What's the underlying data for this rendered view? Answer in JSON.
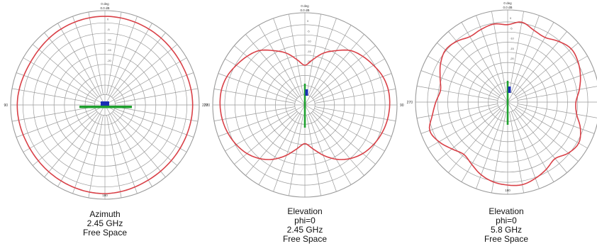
{
  "chart_data": [
    {
      "type": "polar",
      "grid": true,
      "angle_ticks_deg": 10,
      "side_labels": [
        "90",
        "270"
      ],
      "bottom_label": "180",
      "top_label": [
        "0 deg",
        "0.0  dB"
      ],
      "radial_ring_labels": [
        "0",
        "-5",
        "-10",
        "-15",
        "-20"
      ],
      "caption": [
        "Azimuth",
        "2.45 GHz",
        "Free Space"
      ],
      "series": [
        {
          "angles_deg": [
            0,
            30,
            60,
            90,
            120,
            150,
            180,
            210,
            240,
            270,
            300,
            330
          ],
          "radius_norm": [
            0.94,
            0.93,
            0.92,
            0.93,
            0.92,
            0.92,
            0.94,
            0.93,
            0.92,
            0.93,
            0.91,
            0.93
          ]
        }
      ],
      "antenna": {
        "orientation": "horizontal"
      }
    },
    {
      "type": "polar",
      "grid": true,
      "angle_ticks_deg": 10,
      "side_labels": [
        "270",
        "90"
      ],
      "bottom_label": "",
      "top_label": [
        "0 deg",
        "0.0  dB"
      ],
      "radial_ring_labels": [
        "0",
        "-5",
        "-10",
        "-15",
        "-20"
      ],
      "caption": [
        "Elevation",
        "phi=0",
        "2.45 GHz",
        "Free Space"
      ],
      "series": [
        {
          "angles_deg": [
            0,
            10,
            20,
            30,
            40,
            50,
            60,
            70,
            80,
            90,
            100,
            110,
            120,
            130,
            140,
            150,
            160,
            170,
            180,
            190,
            200,
            210,
            220,
            230,
            240,
            250,
            260,
            270,
            280,
            290,
            300,
            310,
            320,
            330,
            340,
            350
          ],
          "radius_norm": [
            0.43,
            0.5,
            0.6,
            0.68,
            0.77,
            0.82,
            0.86,
            0.9,
            0.92,
            0.92,
            0.91,
            0.89,
            0.86,
            0.82,
            0.76,
            0.68,
            0.58,
            0.48,
            0.42,
            0.48,
            0.58,
            0.68,
            0.76,
            0.82,
            0.86,
            0.89,
            0.91,
            0.92,
            0.92,
            0.9,
            0.86,
            0.82,
            0.77,
            0.68,
            0.6,
            0.5
          ]
        }
      ],
      "antenna": {
        "orientation": "vertical"
      }
    },
    {
      "type": "polar",
      "grid": true,
      "angle_ticks_deg": 10,
      "side_labels": [
        "270",
        ""
      ],
      "bottom_label": "180",
      "top_label": [
        "0 deg",
        "0.0  dB"
      ],
      "radial_ring_labels": [
        "0",
        "-5",
        "-10",
        "-15",
        "-20"
      ],
      "caption": [
        "Elevation",
        "phi=0",
        "5.8 GHz",
        "Free Space"
      ],
      "series": [
        {
          "angles_deg": [
            0,
            10,
            20,
            30,
            40,
            50,
            60,
            70,
            80,
            90,
            100,
            110,
            120,
            130,
            140,
            150,
            160,
            170,
            180,
            190,
            200,
            210,
            220,
            230,
            240,
            250,
            260,
            270,
            280,
            290,
            300,
            310,
            320,
            330,
            340,
            350
          ],
          "radius_norm": [
            0.84,
            0.88,
            0.83,
            0.81,
            0.86,
            0.9,
            0.88,
            0.84,
            0.79,
            0.74,
            0.76,
            0.84,
            0.89,
            0.86,
            0.8,
            0.84,
            0.88,
            0.91,
            0.9,
            0.88,
            0.84,
            0.78,
            0.74,
            0.79,
            0.86,
            0.9,
            0.83,
            0.78,
            0.74,
            0.78,
            0.84,
            0.88,
            0.86,
            0.82,
            0.84,
            0.86
          ]
        }
      ],
      "antenna": {
        "orientation": "vertical"
      }
    }
  ],
  "colors": {
    "grid": "#9a9a9a",
    "pattern": "#d94047",
    "antenna_body": "#1fa02e",
    "antenna_feed": "#1a2fb5",
    "text": "#111111"
  }
}
